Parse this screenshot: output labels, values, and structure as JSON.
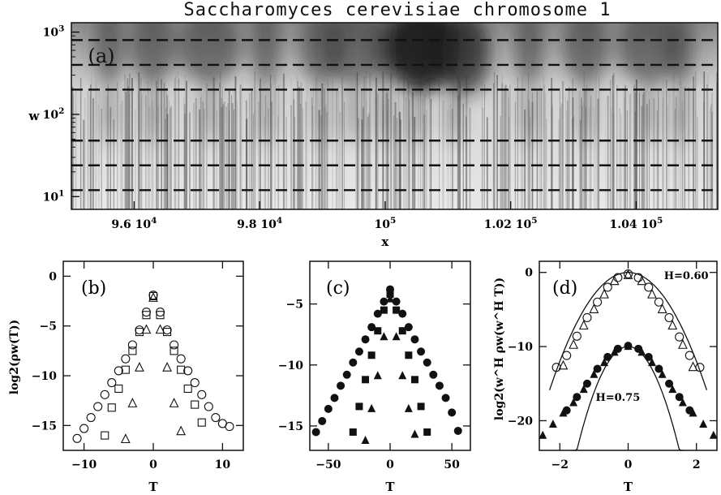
{
  "title": "Saccharomyces cerevisiae chromosome 1",
  "colors": {
    "ink": "#111111",
    "heat_dark": "#222222",
    "heat_light": "#ffffff"
  },
  "chart_data": [
    {
      "panel": "(a)",
      "type": "heatmap",
      "title": "Saccharomyces cerevisiae chromosome 1",
      "xlabel": "x",
      "ylabel": "w",
      "xlim": [
        95000,
        105300
      ],
      "ylim": [
        7,
        1300
      ],
      "yscale": "log",
      "xticks": [
        {
          "value": 96000,
          "label": "9.6 10",
          "exp": "4"
        },
        {
          "value": 98000,
          "label": "9.8 10",
          "exp": "4"
        },
        {
          "value": 100000,
          "label": "10",
          "exp": "5"
        },
        {
          "value": 102000,
          "label": "1.02 10",
          "exp": "5"
        },
        {
          "value": 104000,
          "label": "1.04 10",
          "exp": "5"
        }
      ],
      "yticks": [
        {
          "value": 10,
          "label": "10",
          "exp": "1"
        },
        {
          "value": 100,
          "label": "10",
          "exp": "2"
        },
        {
          "value": 1000,
          "label": "10",
          "exp": "3"
        }
      ],
      "dashed_scales": [
        12,
        24,
        48,
        200,
        400,
        800
      ],
      "intense_x_positions": [
        95600,
        96300,
        97200,
        98100,
        99000,
        99500,
        100000,
        100500,
        101100,
        102300,
        103200,
        104200,
        104700
      ]
    },
    {
      "panel": "(b)",
      "type": "scatter",
      "xlabel": "T",
      "ylabel": "log2(ρw(T))",
      "xlim": [
        -13,
        13
      ],
      "ylim": [
        -17.5,
        1.5
      ],
      "xticks": [
        -10,
        0,
        10
      ],
      "yticks": [
        0,
        -5,
        -10,
        -15
      ],
      "series": [
        {
          "marker": "circle",
          "x": [
            -11,
            -10,
            -9,
            -8,
            -7,
            -6,
            -5,
            -4,
            -3,
            -2,
            -1,
            0,
            1,
            2,
            3,
            4,
            5,
            6,
            7,
            8,
            9,
            10,
            11
          ],
          "y": [
            -16.3,
            -15.3,
            -14.2,
            -13.1,
            -11.9,
            -10.7,
            -9.5,
            -8.3,
            -6.9,
            -5.4,
            -3.6,
            -1.9,
            -3.6,
            -5.4,
            -6.9,
            -8.3,
            -9.5,
            -10.7,
            -11.9,
            -13.1,
            -14.2,
            -14.8,
            -15.1
          ]
        },
        {
          "marker": "square",
          "x": [
            -7,
            -6,
            -5,
            -4,
            -3,
            -2,
            -1,
            0,
            1,
            2,
            3,
            4,
            5,
            6,
            7
          ],
          "y": [
            -16.0,
            -13.2,
            -11.3,
            -9.4,
            -7.5,
            -5.6,
            -3.9,
            -2.0,
            -3.9,
            -5.6,
            -7.5,
            -9.4,
            -11.3,
            -12.9,
            -14.7
          ]
        },
        {
          "marker": "triangle",
          "x": [
            -4,
            -3,
            -2,
            -1,
            0,
            1,
            2,
            3,
            4
          ],
          "y": [
            -16.4,
            -12.8,
            -9.2,
            -5.4,
            -2.2,
            -5.4,
            -9.2,
            -12.8,
            -15.6
          ]
        }
      ]
    },
    {
      "panel": "(c)",
      "type": "scatter",
      "xlabel": "T",
      "ylabel": "",
      "xlim": [
        -65,
        65
      ],
      "ylim": [
        -17,
        -1.5
      ],
      "xticks": [
        -50,
        0,
        50
      ],
      "yticks": [
        -5,
        -10,
        -15
      ],
      "series": [
        {
          "marker": "filled-circle",
          "x": [
            -60,
            -55,
            -50,
            -45,
            -40,
            -35,
            -30,
            -25,
            -20,
            -15,
            -10,
            -5,
            0,
            5,
            10,
            15,
            20,
            25,
            30,
            35,
            40,
            45,
            50,
            55
          ],
          "y": [
            -15.5,
            -14.6,
            -13.6,
            -12.7,
            -11.7,
            -10.8,
            -9.8,
            -8.9,
            -7.9,
            -6.9,
            -5.8,
            -4.8,
            -3.8,
            -4.8,
            -5.8,
            -6.9,
            -7.9,
            -8.9,
            -9.8,
            -10.8,
            -11.7,
            -12.7,
            -13.9,
            -15.4
          ]
        },
        {
          "marker": "filled-square",
          "x": [
            -30,
            -25,
            -20,
            -15,
            -10,
            -5,
            0,
            5,
            10,
            15,
            20,
            25,
            30
          ],
          "y": [
            -15.5,
            -13.4,
            -11.2,
            -9.2,
            -7.2,
            -5.5,
            -4.2,
            -5.5,
            -7.2,
            -9.2,
            -11.2,
            -13.4,
            -15.5
          ]
        },
        {
          "marker": "filled-triangle",
          "x": [
            -20,
            -15,
            -10,
            -5,
            0,
            5,
            10,
            15,
            20
          ],
          "y": [
            -16.2,
            -13.6,
            -10.9,
            -7.7,
            -4.6,
            -7.7,
            -10.9,
            -13.6,
            -15.7
          ]
        }
      ]
    },
    {
      "panel": "(d)",
      "type": "scatter",
      "xlabel": "T",
      "ylabel": "log2(w^H ρw(w^H T))",
      "xlim": [
        -2.6,
        2.6
      ],
      "ylim": [
        -24,
        1.5
      ],
      "xticks": [
        -2,
        0,
        2
      ],
      "yticks": [
        0,
        -10,
        -20
      ],
      "annotations": [
        "H=0.60",
        "H=0.75"
      ],
      "series": [
        {
          "marker": "circle",
          "name": "H=0.60",
          "x": [
            -2.1,
            -1.8,
            -1.5,
            -1.2,
            -0.9,
            -0.6,
            -0.3,
            0,
            0.3,
            0.6,
            0.9,
            1.2,
            1.5,
            1.8,
            2.1
          ],
          "y": [
            -12.8,
            -11.2,
            -8.6,
            -6.1,
            -4.0,
            -2.0,
            -0.7,
            -0.2,
            -0.7,
            -2.0,
            -4.0,
            -6.1,
            -8.7,
            -11.2,
            -12.8
          ]
        },
        {
          "marker": "triangle",
          "name": "H=0.60",
          "x": [
            -1.9,
            -1.6,
            -1.3,
            -1.0,
            -0.7,
            -0.4,
            0,
            0.4,
            0.7,
            1.0,
            1.3,
            1.6,
            1.9
          ],
          "y": [
            -12.6,
            -9.8,
            -7.2,
            -5.0,
            -3.0,
            -1.2,
            -0.4,
            -1.2,
            -3.0,
            -5.0,
            -7.2,
            -9.8,
            -12.8
          ]
        },
        {
          "marker": "filled-triangle",
          "name": "H=0.75",
          "x": [
            -2.5,
            -2.2,
            -1.9,
            -1.6,
            -1.3,
            -1.0,
            -0.7,
            -0.4,
            0,
            0.4,
            0.7,
            1.0,
            1.3,
            1.6,
            1.9,
            2.2,
            2.5
          ],
          "y": [
            -22.0,
            -20.5,
            -19.0,
            -17.6,
            -15.8,
            -13.8,
            -12.2,
            -10.8,
            -10.0,
            -10.8,
            -12.2,
            -13.8,
            -15.8,
            -17.6,
            -19.0,
            -20.5,
            -22.0
          ]
        },
        {
          "marker": "filled-circle",
          "name": "H=0.75",
          "x": [
            -1.8,
            -1.5,
            -1.2,
            -0.9,
            -0.6,
            -0.3,
            0,
            0.3,
            0.6,
            0.9,
            1.2,
            1.5,
            1.8
          ],
          "y": [
            -18.6,
            -16.8,
            -15.0,
            -13.0,
            -11.4,
            -10.3,
            -9.9,
            -10.3,
            -11.4,
            -13.0,
            -15.0,
            -16.8,
            -18.6
          ]
        }
      ],
      "curves": [
        {
          "name": "H=0.60",
          "peak": 0,
          "curvature": 3.0,
          "x_range": [
            -2.3,
            2.3
          ]
        },
        {
          "name": "H=0.75",
          "peak": -10,
          "curvature": 6.2,
          "x_range": [
            -1.6,
            1.6
          ]
        }
      ]
    }
  ]
}
